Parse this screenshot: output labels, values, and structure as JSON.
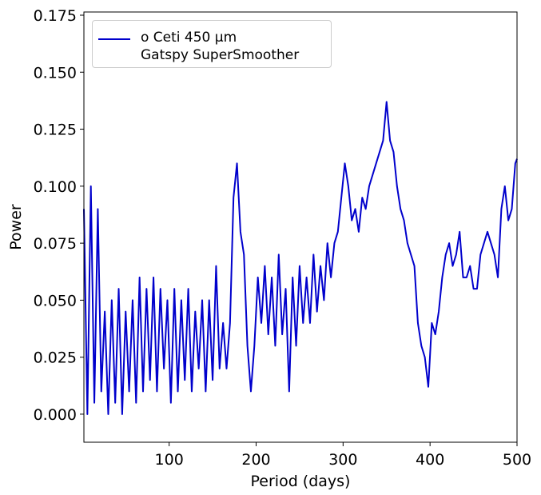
{
  "chart_data": {
    "type": "line",
    "xlabel": "Period (days)",
    "ylabel": "Power",
    "xlim": [
      2,
      500
    ],
    "ylim": [
      -0.0123,
      0.1764
    ],
    "xticks": [
      100,
      200,
      300,
      400,
      500
    ],
    "yticks": [
      {
        "value": 0,
        "label": "0.000"
      },
      0.025,
      {
        "value": 0.05,
        "label": "0.050"
      },
      0.075,
      {
        "value": 0.1,
        "label": "0.100"
      },
      0.125,
      {
        "value": 0.15,
        "label": "0.150"
      },
      0.175
    ],
    "legend": "upper left",
    "x": [
      2,
      6,
      10,
      14,
      18,
      22,
      26,
      30,
      34,
      38,
      42,
      46,
      50,
      54,
      58,
      62,
      66,
      70,
      74,
      78,
      82,
      86,
      90,
      94,
      98,
      102,
      106,
      110,
      114,
      118,
      122,
      126,
      130,
      134,
      138,
      142,
      146,
      150,
      154,
      158,
      162,
      166,
      170,
      174,
      178,
      182,
      186,
      190,
      194,
      198,
      202,
      206,
      210,
      214,
      218,
      222,
      226,
      230,
      234,
      238,
      242,
      246,
      250,
      254,
      258,
      262,
      266,
      270,
      274,
      278,
      282,
      286,
      290,
      294,
      298,
      302,
      306,
      310,
      314,
      318,
      322,
      326,
      330,
      334,
      338,
      342,
      346,
      350,
      354,
      358,
      362,
      366,
      370,
      374,
      378,
      382,
      386,
      390,
      394,
      398,
      402,
      406,
      410,
      414,
      418,
      422,
      426,
      430,
      434,
      438,
      442,
      446,
      450,
      454,
      458,
      462,
      466,
      470,
      474,
      478,
      482,
      486,
      490,
      494,
      498,
      500
    ],
    "series": [
      {
        "name": "o Ceti 450 μm\n Gatspy SuperSmoother",
        "color": "#0000cc",
        "values": [
          0.09,
          0.0,
          0.1,
          0.005,
          0.09,
          0.01,
          0.045,
          0.0,
          0.05,
          0.005,
          0.055,
          0.0,
          0.045,
          0.01,
          0.05,
          0.005,
          0.06,
          0.01,
          0.055,
          0.015,
          0.06,
          0.01,
          0.055,
          0.02,
          0.05,
          0.005,
          0.055,
          0.01,
          0.05,
          0.015,
          0.055,
          0.01,
          0.045,
          0.02,
          0.05,
          0.01,
          0.05,
          0.015,
          0.065,
          0.02,
          0.04,
          0.02,
          0.04,
          0.095,
          0.11,
          0.08,
          0.07,
          0.03,
          0.01,
          0.03,
          0.06,
          0.04,
          0.065,
          0.035,
          0.06,
          0.03,
          0.07,
          0.035,
          0.055,
          0.01,
          0.06,
          0.03,
          0.065,
          0.04,
          0.06,
          0.04,
          0.07,
          0.045,
          0.065,
          0.05,
          0.075,
          0.06,
          0.075,
          0.08,
          0.095,
          0.11,
          0.1,
          0.085,
          0.09,
          0.08,
          0.095,
          0.09,
          0.1,
          0.105,
          0.11,
          0.115,
          0.12,
          0.137,
          0.12,
          0.115,
          0.1,
          0.09,
          0.085,
          0.075,
          0.07,
          0.065,
          0.04,
          0.03,
          0.025,
          0.012,
          0.04,
          0.035,
          0.045,
          0.06,
          0.07,
          0.075,
          0.065,
          0.07,
          0.08,
          0.06,
          0.06,
          0.065,
          0.055,
          0.055,
          0.07,
          0.075,
          0.08,
          0.075,
          0.07,
          0.06,
          0.09,
          0.1,
          0.085,
          0.09,
          0.11,
          0.112
        ]
      }
    ]
  }
}
